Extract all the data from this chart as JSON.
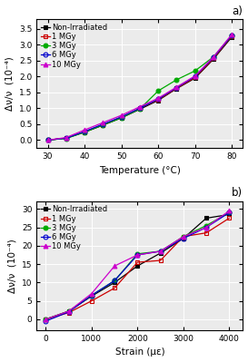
{
  "temp_x": [
    30,
    35,
    40,
    45,
    50,
    55,
    60,
    65,
    70,
    75,
    80
  ],
  "temp_data": {
    "non_irr": [
      0.0,
      0.06,
      0.25,
      0.47,
      0.7,
      0.97,
      1.25,
      1.62,
      1.95,
      2.55,
      3.25
    ],
    "mgy1": [
      0.0,
      0.06,
      0.26,
      0.48,
      0.72,
      1.0,
      1.27,
      1.63,
      1.97,
      2.57,
      3.28
    ],
    "mgy3": [
      0.0,
      0.05,
      0.25,
      0.47,
      0.7,
      0.98,
      1.55,
      1.9,
      2.18,
      2.62,
      3.3
    ],
    "mgy6": [
      0.0,
      0.06,
      0.27,
      0.5,
      0.73,
      1.0,
      1.29,
      1.65,
      2.0,
      2.6,
      3.3
    ],
    "mgy10": [
      0.0,
      0.08,
      0.32,
      0.55,
      0.78,
      1.05,
      1.32,
      1.67,
      2.02,
      2.62,
      3.33
    ]
  },
  "strain_x": [
    0,
    500,
    1000,
    1500,
    2000,
    2500,
    3000,
    3500,
    4000
  ],
  "strain_data": {
    "non_irr": [
      0.0,
      2.2,
      6.3,
      10.0,
      14.5,
      18.0,
      22.0,
      27.5,
      28.5
    ],
    "mgy1": [
      0.0,
      1.8,
      5.0,
      8.5,
      15.5,
      16.0,
      22.5,
      23.5,
      27.5
    ],
    "mgy3": [
      0.0,
      2.2,
      6.5,
      10.5,
      17.8,
      18.5,
      22.5,
      25.5,
      29.0
    ],
    "mgy6": [
      -0.5,
      2.0,
      6.5,
      10.5,
      17.5,
      18.5,
      22.0,
      25.0,
      29.0
    ],
    "mgy10": [
      0.0,
      2.2,
      7.0,
      14.5,
      17.5,
      18.5,
      22.5,
      25.0,
      29.5
    ]
  },
  "series": [
    {
      "label": "Non-Irradiated",
      "color": "#000000",
      "marker": "s",
      "fillstyle": "full",
      "mfc": "#000000"
    },
    {
      "label": "1 MGy",
      "color": "#cc0000",
      "marker": "s",
      "fillstyle": "none",
      "mfc": "none"
    },
    {
      "label": "3 MGy",
      "color": "#00aa00",
      "marker": "o",
      "fillstyle": "full",
      "mfc": "#00aa00"
    },
    {
      "label": "6 MGy",
      "color": "#0000cc",
      "marker": "o",
      "fillstyle": "none",
      "mfc": "none"
    },
    {
      "label": "10 MGy",
      "color": "#cc00cc",
      "marker": "^",
      "fillstyle": "full",
      "mfc": "#cc00cc"
    }
  ],
  "panel_a": {
    "xlabel": "Temperature (°C)",
    "ylabel": "Δν/ν  (10⁻⁴)",
    "xlim": [
      27,
      83
    ],
    "ylim": [
      -0.25,
      3.8
    ],
    "yticks": [
      0.0,
      0.5,
      1.0,
      1.5,
      2.0,
      2.5,
      3.0,
      3.5
    ],
    "xticks": [
      30,
      40,
      50,
      60,
      70,
      80
    ]
  },
  "panel_b": {
    "xlabel": "Strain (με)",
    "ylabel": "Δν/ν  (10⁻⁴)",
    "xlim": [
      -200,
      4300
    ],
    "ylim": [
      -3,
      32
    ],
    "yticks": [
      0,
      5,
      10,
      15,
      20,
      25,
      30
    ],
    "xticks": [
      0,
      1000,
      2000,
      3000,
      4000
    ]
  },
  "label_fontsize": 7.5,
  "tick_fontsize": 6.5,
  "legend_fontsize": 6.0,
  "markersize": 3.5,
  "linewidth": 0.9,
  "bg_color": "#ebebeb"
}
